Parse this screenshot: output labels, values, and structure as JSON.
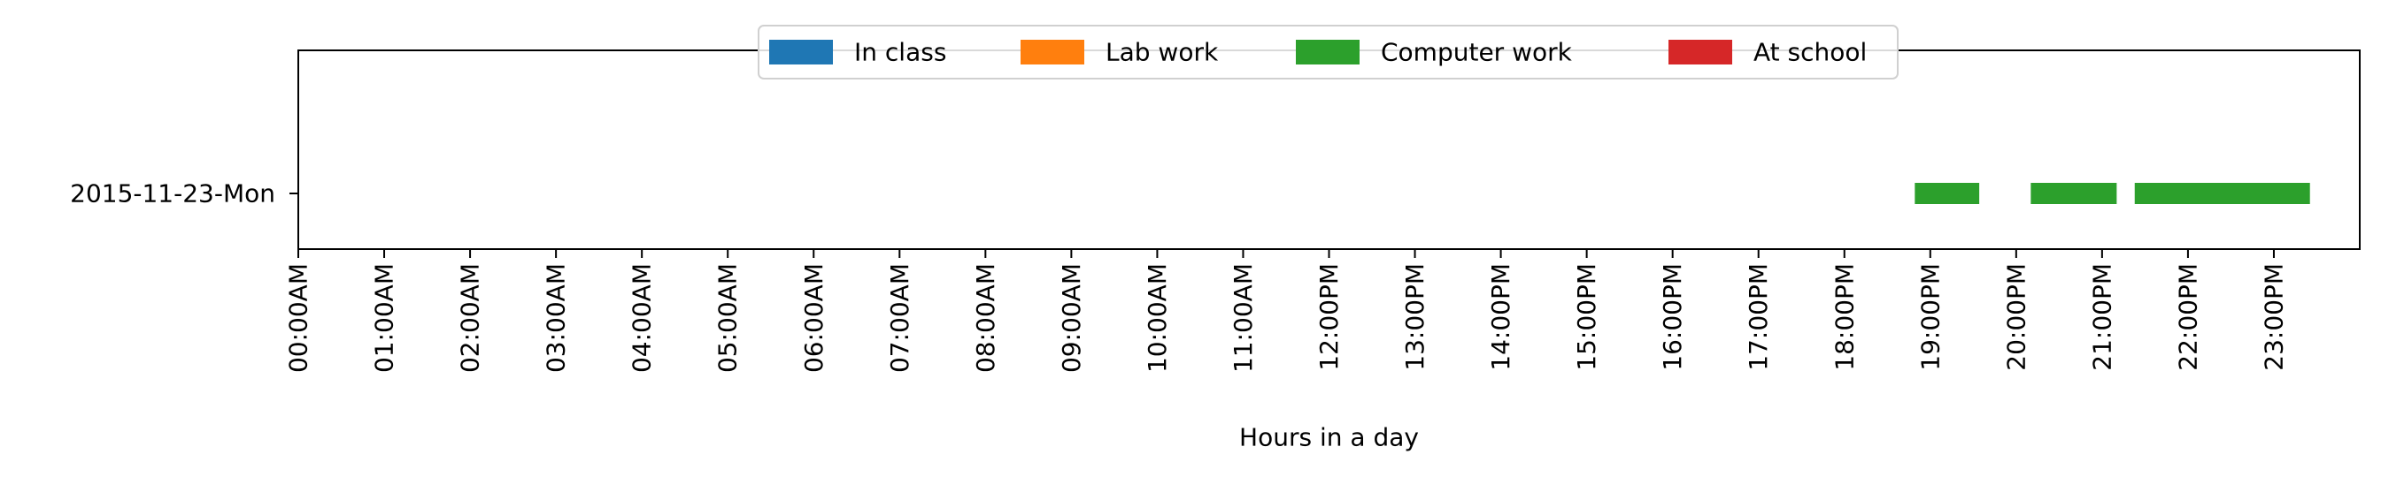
{
  "chart_data": {
    "type": "bar",
    "orientation": "horizontal-timeline",
    "title": "",
    "xlabel": "Hours in a day",
    "ylabel": "",
    "xlim": [
      0,
      24
    ],
    "grid": false,
    "legend_placement": "top-center",
    "categories": [
      "2015-11-23-Mon"
    ],
    "x_ticks": [
      {
        "value": 0,
        "label": "00:00AM"
      },
      {
        "value": 1,
        "label": "01:00AM"
      },
      {
        "value": 2,
        "label": "02:00AM"
      },
      {
        "value": 3,
        "label": "03:00AM"
      },
      {
        "value": 4,
        "label": "04:00AM"
      },
      {
        "value": 5,
        "label": "05:00AM"
      },
      {
        "value": 6,
        "label": "06:00AM"
      },
      {
        "value": 7,
        "label": "07:00AM"
      },
      {
        "value": 8,
        "label": "08:00AM"
      },
      {
        "value": 9,
        "label": "09:00AM"
      },
      {
        "value": 10,
        "label": "10:00AM"
      },
      {
        "value": 11,
        "label": "11:00AM"
      },
      {
        "value": 12,
        "label": "12:00PM"
      },
      {
        "value": 13,
        "label": "13:00PM"
      },
      {
        "value": 14,
        "label": "14:00PM"
      },
      {
        "value": 15,
        "label": "15:00PM"
      },
      {
        "value": 16,
        "label": "16:00PM"
      },
      {
        "value": 17,
        "label": "17:00PM"
      },
      {
        "value": 18,
        "label": "18:00PM"
      },
      {
        "value": 19,
        "label": "19:00PM"
      },
      {
        "value": 20,
        "label": "20:00PM"
      },
      {
        "value": 21,
        "label": "21:00PM"
      },
      {
        "value": 22,
        "label": "22:00PM"
      },
      {
        "value": 23,
        "label": "23:00PM"
      }
    ],
    "series": [
      {
        "name": "In class",
        "color": "#1f77b4",
        "segments": []
      },
      {
        "name": "Lab work",
        "color": "#ff7f0e",
        "segments": []
      },
      {
        "name": "Computer work",
        "color": "#2ca02c",
        "segments": [
          {
            "category": "2015-11-23-Mon",
            "start": 18.82,
            "end": 19.57
          },
          {
            "category": "2015-11-23-Mon",
            "start": 20.17,
            "end": 21.17
          },
          {
            "category": "2015-11-23-Mon",
            "start": 21.38,
            "end": 23.42
          }
        ]
      },
      {
        "name": "At school",
        "color": "#d62728",
        "segments": []
      }
    ]
  }
}
